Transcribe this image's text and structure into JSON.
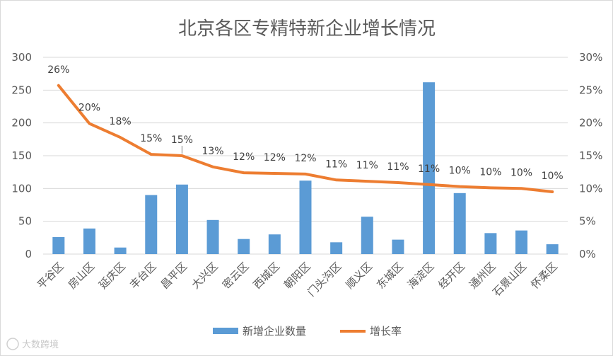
{
  "chart_data": {
    "type": "bar+line",
    "title": "北京各区专精特新企业增长情况",
    "categories": [
      "平谷区",
      "房山区",
      "延庆区",
      "丰台区",
      "昌平区",
      "大兴区",
      "密云区",
      "西城区",
      "朝阳区",
      "门头沟区",
      "顺义区",
      "东城区",
      "海淀区",
      "经开区",
      "通州区",
      "石景山区",
      "怀柔区"
    ],
    "series": [
      {
        "name": "新增企业数量",
        "type": "bar",
        "axis": "left",
        "color": "#5b9bd5",
        "values": [
          26,
          39,
          10,
          90,
          106,
          52,
          23,
          30,
          112,
          18,
          57,
          22,
          262,
          93,
          32,
          36,
          15
        ]
      },
      {
        "name": "增长率",
        "type": "line",
        "axis": "right",
        "color": "#ed7d31",
        "values": [
          25.7,
          19.9,
          17.8,
          15.2,
          15.0,
          13.3,
          12.4,
          12.3,
          12.2,
          11.3,
          11.1,
          10.9,
          10.6,
          10.3,
          10.1,
          10.0,
          9.5
        ],
        "labels": [
          "26%",
          "20%",
          "18%",
          "15%",
          "15%",
          "13%",
          "12%",
          "12%",
          "12%",
          "11%",
          "11%",
          "11%",
          "11%",
          "10%",
          "10%",
          "10%",
          "10%"
        ]
      }
    ],
    "ylim_left": [
      0,
      300
    ],
    "yticks_left": [
      "0",
      "50",
      "100",
      "150",
      "200",
      "250",
      "300"
    ],
    "ylim_right": [
      0,
      30
    ],
    "yticks_right": [
      "0%",
      "5%",
      "10%",
      "15%",
      "20%",
      "25%",
      "30%"
    ],
    "grid": true,
    "legend": "bottom"
  },
  "watermark": "大数跨境",
  "colors": {
    "bar": "#5b9bd5",
    "line": "#ed7d31",
    "grid": "#d9d9d9",
    "text": "#595959"
  }
}
